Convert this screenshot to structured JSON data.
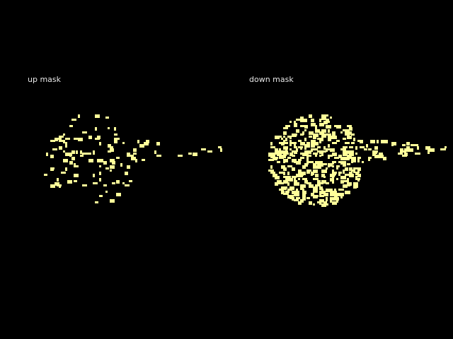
{
  "panels": [
    {
      "title": "up mask",
      "fill_color": "#ffff99",
      "background_color": "#000000"
    },
    {
      "title": "down mask",
      "fill_color": "#ffff99",
      "background_color": "#000000"
    }
  ],
  "image_width": 640,
  "image_height": 480
}
